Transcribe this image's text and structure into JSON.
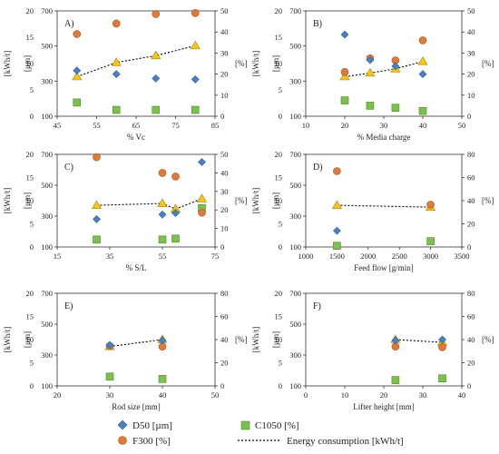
{
  "chart_data": [
    {
      "type": "scatter",
      "panel_label": "A)",
      "xlabel": "% Vc",
      "x_ticks": [
        "45",
        "55",
        "65",
        "75",
        "85"
      ],
      "xlim": [
        45,
        85
      ],
      "left_label_outer": "[kWh/t]",
      "left_label_inner": "[µm]",
      "left_outer_ticks": [
        "0",
        "5",
        "10",
        "15",
        "20"
      ],
      "left_inner_ticks": [
        "100",
        "300",
        "500",
        "700"
      ],
      "right_label": "[%]",
      "right_ticks": [
        "0",
        "10",
        "20",
        "30",
        "40",
        "50"
      ],
      "series": [
        {
          "name": "D50 [µm]",
          "x": [
            50,
            60,
            70,
            80
          ],
          "y": [
            360,
            340,
            315,
            310
          ]
        },
        {
          "name": "C1050 [%]",
          "x": [
            50,
            60,
            70,
            80
          ],
          "y": [
            6.5,
            3,
            3,
            3
          ]
        },
        {
          "name": "F300 [%]",
          "x": [
            50,
            60,
            70,
            80
          ],
          "y": [
            39,
            44,
            48.5,
            49
          ]
        },
        {
          "name": "Energy consumption [kWh/t]",
          "x": [
            50,
            60,
            70,
            80
          ],
          "y": [
            7.5,
            10.2,
            11.5,
            13.4
          ]
        }
      ]
    },
    {
      "type": "scatter",
      "panel_label": "B)",
      "xlabel": "% Media charge",
      "x_ticks": [
        "10",
        "20",
        "30",
        "40",
        "50"
      ],
      "xlim": [
        10,
        50
      ],
      "left_label_outer": "[kWh/t]",
      "left_label_inner": "[µm]",
      "left_outer_ticks": [
        "0",
        "5",
        "10",
        "15",
        "20"
      ],
      "left_inner_ticks": [
        "100",
        "300",
        "500",
        "700"
      ],
      "right_label": "[%]",
      "right_ticks": [
        "0",
        "10",
        "20",
        "30",
        "40",
        "50"
      ],
      "series": [
        {
          "name": "D50 [µm]",
          "x": [
            20,
            26.5,
            33,
            40
          ],
          "y": [
            565,
            420,
            385,
            340
          ]
        },
        {
          "name": "C1050 [%]",
          "x": [
            20,
            26.5,
            33,
            40
          ],
          "y": [
            7.5,
            5,
            4,
            2.5
          ]
        },
        {
          "name": "F300 [%]",
          "x": [
            20,
            26.5,
            33,
            40
          ],
          "y": [
            21,
            27.5,
            26.5,
            36
          ]
        },
        {
          "name": "Energy consumption [kWh/t]",
          "x": [
            20,
            26.5,
            33,
            40
          ],
          "y": [
            7.5,
            8.2,
            9,
            10.4
          ]
        }
      ]
    },
    {
      "type": "scatter",
      "panel_label": "C)",
      "xlabel": "% S/L",
      "x_ticks": [
        "15",
        "35",
        "55",
        "75"
      ],
      "xlim": [
        15,
        75
      ],
      "left_label_outer": "[kWh/t]",
      "left_label_inner": "[µm]",
      "left_outer_ticks": [
        "0",
        "5",
        "10",
        "15",
        "20"
      ],
      "left_inner_ticks": [
        "100",
        "300",
        "500",
        "700"
      ],
      "right_label": "[%]",
      "right_ticks": [
        "0",
        "10",
        "20",
        "30",
        "40",
        "50"
      ],
      "series": [
        {
          "name": "D50 [µm]",
          "x": [
            30,
            55,
            60,
            70
          ],
          "y": [
            280,
            310,
            320,
            650
          ]
        },
        {
          "name": "C1050 [%]",
          "x": [
            30,
            55,
            60,
            70
          ],
          "y": [
            4,
            4,
            4.5,
            21
          ]
        },
        {
          "name": "F300 [%]",
          "x": [
            30,
            55,
            60,
            70
          ],
          "y": [
            48.5,
            40,
            38,
            18.5
          ]
        },
        {
          "name": "Energy consumption [kWh/t]",
          "x": [
            30,
            55,
            60,
            70
          ],
          "y": [
            9,
            9.4,
            8.2,
            10.4
          ]
        }
      ]
    },
    {
      "type": "scatter",
      "panel_label": "D)",
      "xlabel": "Feed flow [g/min]",
      "x_ticks": [
        "1000",
        "1500",
        "2000",
        "2500",
        "3000",
        "3500"
      ],
      "xlim": [
        1000,
        3500
      ],
      "left_label_outer": "[kWh/t]",
      "left_label_inner": "[µm]",
      "left_outer_ticks": [
        "0",
        "5",
        "10",
        "15",
        "20"
      ],
      "left_inner_ticks": [
        "100",
        "300",
        "500",
        "700"
      ],
      "right_label": "[%]",
      "right_ticks": [
        "0",
        "20",
        "40",
        "60",
        "80"
      ],
      "series": [
        {
          "name": "D50 [µm]",
          "x": [
            1500
          ],
          "y": [
            205
          ]
        },
        {
          "name": "C1050 [%]",
          "x": [
            1500,
            3000
          ],
          "y": [
            1,
            5
          ]
        },
        {
          "name": "F300 [%]",
          "x": [
            1500,
            3000
          ],
          "y": [
            65.5,
            36.5
          ]
        },
        {
          "name": "Energy consumption [kWh/t]",
          "x": [
            1500,
            3000
          ],
          "y": [
            9,
            8.6
          ]
        }
      ]
    },
    {
      "type": "scatter",
      "panel_label": "E)",
      "xlabel": "Rod size [mm]",
      "x_ticks": [
        "20",
        "30",
        "40",
        "50"
      ],
      "xlim": [
        20,
        50
      ],
      "left_label_outer": "[kWh/t]",
      "left_label_inner": "[µm]",
      "left_outer_ticks": [
        "0",
        "5",
        "10",
        "15",
        "20"
      ],
      "left_inner_ticks": [
        "100",
        "300",
        "500",
        "700"
      ],
      "right_label": "[%]",
      "right_ticks": [
        "0",
        "20",
        "40",
        "60",
        "80"
      ],
      "series": [
        {
          "name": "D50 [µm]",
          "x": [
            30,
            40
          ],
          "y": [
            365,
            395
          ]
        },
        {
          "name": "C1050 [%]",
          "x": [
            30,
            40
          ],
          "y": [
            8,
            6
          ]
        },
        {
          "name": "F300 [%]",
          "x": [
            30,
            40
          ],
          "y": [
            34.5,
            34
          ]
        },
        {
          "name": "Energy consumption [kWh/t]",
          "x": [
            30,
            40
          ],
          "y": [
            8.5,
            10
          ]
        }
      ]
    },
    {
      "type": "scatter",
      "panel_label": "F)",
      "xlabel": "Lifter height [mm]",
      "x_ticks": [
        "0",
        "10",
        "20",
        "30",
        "40"
      ],
      "xlim": [
        0,
        40
      ],
      "left_label_outer": "[kWh/t]",
      "left_label_inner": "[µm]",
      "left_outer_ticks": [
        "0",
        "5",
        "10",
        "15",
        "20"
      ],
      "left_inner_ticks": [
        "100",
        "300",
        "500",
        "700"
      ],
      "right_label": "[%]",
      "right_ticks": [
        "0",
        "20",
        "40",
        "60",
        "80"
      ],
      "series": [
        {
          "name": "D50 [µm]",
          "x": [
            23,
            35
          ],
          "y": [
            395,
            400
          ]
        },
        {
          "name": "C1050 [%]",
          "x": [
            23,
            35
          ],
          "y": [
            5,
            6.5
          ]
        },
        {
          "name": "F300 [%]",
          "x": [
            23,
            35
          ],
          "y": [
            34,
            33.5
          ]
        },
        {
          "name": "Energy consumption [kWh/t]",
          "x": [
            23,
            35
          ],
          "y": [
            10,
            9.4
          ]
        }
      ]
    }
  ],
  "legend": {
    "d50": "D50 [µm]",
    "c1050": "C1050 [%]",
    "f300": "F300 [%]",
    "energy": "Energy consumption [kWh/t]"
  },
  "colors": {
    "d50": "#4a7fc1",
    "c1050": "#7cc04e",
    "f300": "#e07a3a",
    "energy": "#f5c518"
  }
}
